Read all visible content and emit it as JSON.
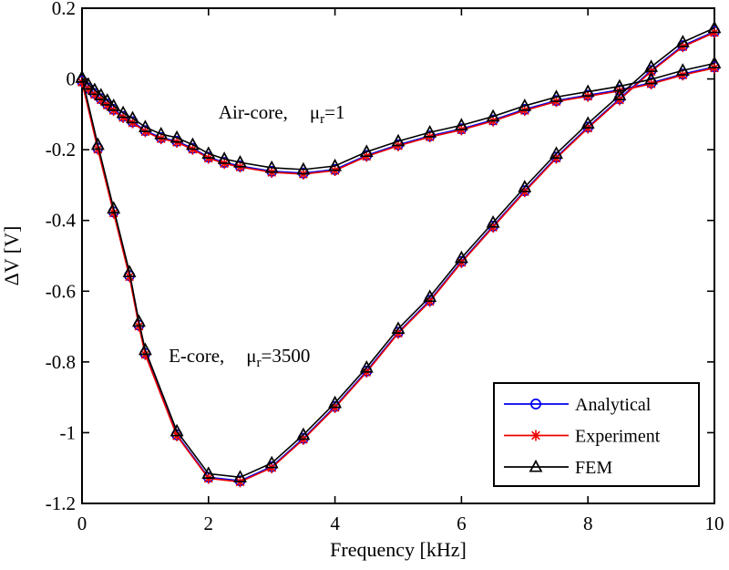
{
  "chart_data": {
    "type": "line",
    "title": "",
    "xlabel": "Frequency [kHz]",
    "ylabel": "ΔV [V]",
    "xlim": [
      0,
      10
    ],
    "ylim": [
      -1.2,
      0.2
    ],
    "xticks": [
      0,
      2,
      4,
      6,
      8,
      10
    ],
    "xtick_labels": [
      "0",
      "2",
      "4",
      "6",
      "8",
      "10"
    ],
    "yticks": [
      0.2,
      0,
      -0.2,
      -0.4,
      -0.6,
      -0.8,
      -1,
      -1.2
    ],
    "ytick_labels": [
      "0.2",
      "0",
      "-0.2",
      "-0.4",
      "-0.6",
      "-0.8",
      "-1",
      "-1.2"
    ],
    "grid": false,
    "background": "#ffffff",
    "frame_color": "#000000",
    "legend": {
      "position": "lower-right"
    },
    "series": [
      {
        "name": "Analytical",
        "color": "#0000ee",
        "marker": "circle",
        "y_offset": -0.006
      },
      {
        "name": "Experiment",
        "color": "#ee0000",
        "marker": "asterisk",
        "y_offset": -0.009
      },
      {
        "name": "FEM",
        "color": "#000000",
        "marker": "triangle",
        "y_offset": 0.004
      }
    ],
    "curves": [
      {
        "id": "air-core",
        "x": [
          0,
          0.1,
          0.2,
          0.3,
          0.4,
          0.5,
          0.65,
          0.8,
          1.0,
          1.25,
          1.5,
          1.75,
          2.0,
          2.25,
          2.5,
          3.0,
          3.5,
          4.0,
          4.5,
          5.0,
          5.5,
          6.0,
          6.5,
          7.0,
          7.5,
          8.0,
          8.5,
          9.0,
          9.5,
          10
        ],
        "y": [
          0,
          -0.02,
          -0.035,
          -0.05,
          -0.065,
          -0.08,
          -0.1,
          -0.115,
          -0.14,
          -0.16,
          -0.17,
          -0.19,
          -0.215,
          -0.23,
          -0.24,
          -0.255,
          -0.26,
          -0.25,
          -0.21,
          -0.18,
          -0.155,
          -0.135,
          -0.11,
          -0.08,
          -0.055,
          -0.04,
          -0.025,
          -0.005,
          0.02,
          0.04
        ]
      },
      {
        "id": "e-core",
        "x": [
          0,
          0.25,
          0.5,
          0.75,
          0.9,
          1.0,
          1.5,
          2.0,
          2.5,
          3.0,
          3.5,
          4.0,
          4.5,
          5.0,
          5.5,
          6.0,
          6.5,
          7.0,
          7.5,
          8.0,
          8.5,
          9.0,
          9.5,
          10
        ],
        "y": [
          0,
          -0.19,
          -0.37,
          -0.55,
          -0.69,
          -0.77,
          -1.0,
          -1.12,
          -1.13,
          -1.09,
          -1.01,
          -0.92,
          -0.82,
          -0.71,
          -0.62,
          -0.51,
          -0.41,
          -0.31,
          -0.215,
          -0.13,
          -0.05,
          0.03,
          0.1,
          0.14
        ]
      }
    ],
    "annotations": [
      {
        "x": 2.16,
        "y": -0.112,
        "prefix": "Air-core,",
        "symbol": "μ",
        "subscript": "r",
        "suffix": "=1"
      },
      {
        "x": 1.37,
        "y": -0.8,
        "prefix": "E-core,",
        "symbol": "μ",
        "subscript": "r",
        "suffix": "=3500"
      }
    ]
  }
}
